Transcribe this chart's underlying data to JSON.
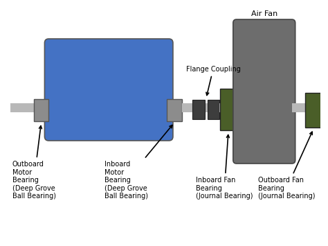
{
  "bg_color": "#ffffff",
  "shaft_color": "#b8b8b8",
  "motor_body_color": "#4472c4",
  "motor_bearing_color": "#8c8c8c",
  "fan_body_color": "#6d6d6d",
  "fan_bearing_color": "#4a5e28",
  "coupling_color": "#3d3d3d",
  "labels": {
    "outboard_motor": "Outboard\nMotor\nBearing\n(Deep Grove\nBall Bearing)",
    "inboard_motor": "Inboard\nMotor\nBearing\n(Deep Grove\nBall Bearing)",
    "inboard_fan": "Inboard Fan\nBearing\n(Journal Bearing)",
    "outboard_fan": "Outboard Fan\nBearing\n(Journal Bearing)",
    "flange_coupling": "Flange Coupling",
    "air_fan": "Air Fan"
  }
}
